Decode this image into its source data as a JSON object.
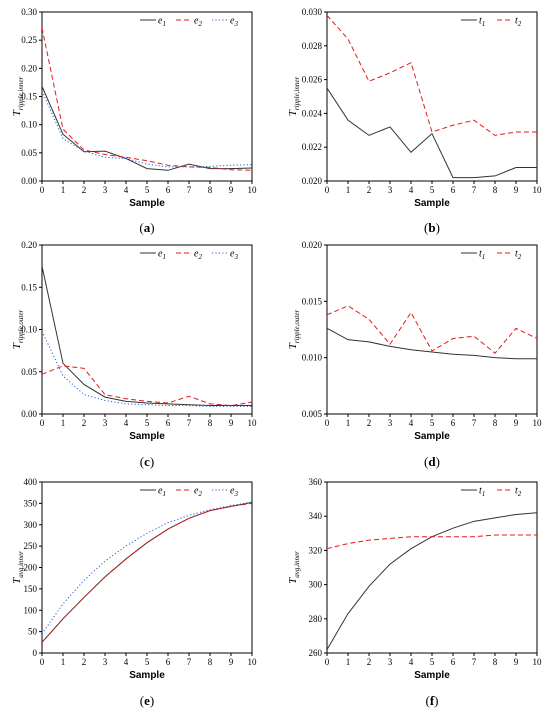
{
  "colors": {
    "e1": "#333333",
    "e2": "#e41a1c",
    "e3": "#1f5fd6",
    "t1": "#333333",
    "t2": "#e41a1c"
  },
  "chart_data": [
    {
      "id": "a",
      "caption": "a",
      "type": "line",
      "xlabel": "Sample",
      "ylabel": {
        "main": "T",
        "sub": "ripple,inner"
      },
      "xlim": [
        0,
        10
      ],
      "ylim": [
        0,
        0.3
      ],
      "xticks": [
        0,
        1,
        2,
        3,
        4,
        5,
        6,
        7,
        8,
        9,
        10
      ],
      "yticks": [
        0.0,
        0.05,
        0.1,
        0.15,
        0.2,
        0.25,
        0.3
      ],
      "ytick_labels": [
        "0.00",
        "0.05",
        "0.10",
        "0.15",
        "0.20",
        "0.25",
        "0.30"
      ],
      "legend": "top-right",
      "x": [
        0,
        1,
        2,
        3,
        4,
        5,
        6,
        7,
        8,
        9,
        10
      ],
      "series": [
        {
          "name": "e",
          "sub": "1",
          "style": "solid",
          "color_key": "e1",
          "values": [
            0.168,
            0.083,
            0.052,
            0.053,
            0.04,
            0.022,
            0.019,
            0.03,
            0.022,
            0.022,
            0.023
          ]
        },
        {
          "name": "e",
          "sub": "2",
          "style": "dashed",
          "color_key": "e2",
          "values": [
            0.272,
            0.092,
            0.055,
            0.047,
            0.042,
            0.036,
            0.028,
            0.025,
            0.024,
            0.02,
            0.019
          ]
        },
        {
          "name": "e",
          "sub": "3",
          "style": "dotted",
          "color_key": "e3",
          "values": [
            0.16,
            0.075,
            0.053,
            0.042,
            0.04,
            0.03,
            0.025,
            0.025,
            0.026,
            0.028,
            0.029
          ]
        }
      ]
    },
    {
      "id": "b",
      "caption": "b",
      "type": "line",
      "xlabel": "Sample",
      "ylabel": {
        "main": "T",
        "sub": "ripple,inner"
      },
      "xlim": [
        0,
        10
      ],
      "ylim": [
        0.02,
        0.03
      ],
      "xticks": [
        0,
        1,
        2,
        3,
        4,
        5,
        6,
        7,
        8,
        9,
        10
      ],
      "yticks": [
        0.02,
        0.022,
        0.024,
        0.026,
        0.028,
        0.03
      ],
      "ytick_labels": [
        "0.020",
        "0.022",
        "0.024",
        "0.026",
        "0.028",
        "0.030"
      ],
      "legend": "top-right",
      "x": [
        0,
        1,
        2,
        3,
        4,
        5,
        6,
        7,
        8,
        9,
        10
      ],
      "series": [
        {
          "name": "t",
          "sub": "1",
          "style": "solid",
          "color_key": "t1",
          "values": [
            0.0255,
            0.0236,
            0.0227,
            0.0232,
            0.0217,
            0.0228,
            0.0202,
            0.0202,
            0.0203,
            0.0208,
            0.0208
          ]
        },
        {
          "name": "t",
          "sub": "2",
          "style": "dashed",
          "color_key": "t2",
          "values": [
            0.0298,
            0.0284,
            0.0259,
            0.0264,
            0.027,
            0.0229,
            0.0233,
            0.0236,
            0.0227,
            0.0229,
            0.0229
          ]
        }
      ]
    },
    {
      "id": "c",
      "caption": "c",
      "type": "line",
      "xlabel": "Sample",
      "ylabel": {
        "main": "T",
        "sub": "ripple,outer"
      },
      "xlim": [
        0,
        10
      ],
      "ylim": [
        0,
        0.2
      ],
      "xticks": [
        0,
        1,
        2,
        3,
        4,
        5,
        6,
        7,
        8,
        9,
        10
      ],
      "yticks": [
        0.0,
        0.05,
        0.1,
        0.15,
        0.2
      ],
      "ytick_labels": [
        "0.00",
        "0.05",
        "0.10",
        "0.15",
        "0.20"
      ],
      "legend": "top-right",
      "x": [
        0,
        1,
        2,
        3,
        4,
        5,
        6,
        7,
        8,
        9,
        10
      ],
      "series": [
        {
          "name": "e",
          "sub": "1",
          "style": "solid",
          "color_key": "e1",
          "values": [
            0.175,
            0.06,
            0.035,
            0.02,
            0.015,
            0.013,
            0.012,
            0.011,
            0.01,
            0.01,
            0.01
          ]
        },
        {
          "name": "e",
          "sub": "2",
          "style": "dashed",
          "color_key": "e2",
          "values": [
            0.047,
            0.057,
            0.054,
            0.023,
            0.018,
            0.015,
            0.013,
            0.021,
            0.012,
            0.01,
            0.014
          ]
        },
        {
          "name": "e",
          "sub": "3",
          "style": "dotted",
          "color_key": "e3",
          "values": [
            0.098,
            0.045,
            0.023,
            0.016,
            0.012,
            0.011,
            0.01,
            0.01,
            0.009,
            0.009,
            0.009
          ]
        }
      ]
    },
    {
      "id": "d",
      "caption": "d",
      "type": "line",
      "xlabel": "Sample",
      "ylabel": {
        "main": "T",
        "sub": "ripple,outer"
      },
      "xlim": [
        0,
        10
      ],
      "ylim": [
        0.005,
        0.02
      ],
      "xticks": [
        0,
        1,
        2,
        3,
        4,
        5,
        6,
        7,
        8,
        9,
        10
      ],
      "yticks": [
        0.005,
        0.01,
        0.015,
        0.02
      ],
      "ytick_labels": [
        "0.005",
        "0.010",
        "0.015",
        "0.020"
      ],
      "legend": "top-right",
      "x": [
        0,
        1,
        2,
        3,
        4,
        5,
        6,
        7,
        8,
        9,
        10
      ],
      "series": [
        {
          "name": "t",
          "sub": "1",
          "style": "solid",
          "color_key": "t1",
          "values": [
            0.0126,
            0.0116,
            0.0114,
            0.011,
            0.0107,
            0.0105,
            0.0103,
            0.0102,
            0.01,
            0.0099,
            0.0099
          ]
        },
        {
          "name": "t",
          "sub": "2",
          "style": "dashed",
          "color_key": "t2",
          "values": [
            0.0138,
            0.0146,
            0.0134,
            0.0112,
            0.014,
            0.0106,
            0.0117,
            0.0119,
            0.0104,
            0.0126,
            0.0117
          ]
        }
      ]
    },
    {
      "id": "e",
      "caption": "e",
      "type": "line",
      "xlabel": "Sample",
      "ylabel": {
        "main": "T",
        "sub": "avg,inner"
      },
      "xlim": [
        0,
        10
      ],
      "ylim": [
        0,
        400
      ],
      "xticks": [
        0,
        1,
        2,
        3,
        4,
        5,
        6,
        7,
        8,
        9,
        10
      ],
      "yticks": [
        0,
        50,
        100,
        150,
        200,
        250,
        300,
        350,
        400
      ],
      "ytick_labels": [
        "0",
        "50",
        "100",
        "150",
        "200",
        "250",
        "300",
        "350",
        "400"
      ],
      "legend": "top-right",
      "x": [
        0,
        1,
        2,
        3,
        4,
        5,
        6,
        7,
        8,
        9,
        10
      ],
      "series": [
        {
          "name": "e",
          "sub": "1",
          "style": "solid",
          "color_key": "e1",
          "values": [
            25,
            80,
            130,
            178,
            220,
            258,
            290,
            315,
            333,
            343,
            352
          ]
        },
        {
          "name": "e",
          "sub": "2",
          "style": "dashed",
          "color_key": "e2",
          "values": [
            25,
            80,
            130,
            178,
            220,
            258,
            290,
            315,
            333,
            343,
            350
          ]
        },
        {
          "name": "e",
          "sub": "3",
          "style": "dotted",
          "color_key": "e3",
          "values": [
            45,
            115,
            170,
            215,
            250,
            280,
            305,
            322,
            335,
            345,
            353
          ]
        }
      ]
    },
    {
      "id": "f",
      "caption": "f",
      "type": "line",
      "xlabel": "Sample",
      "ylabel": {
        "main": "T",
        "sub": "avg,inner"
      },
      "xlim": [
        0,
        10
      ],
      "ylim": [
        260,
        360
      ],
      "xticks": [
        0,
        1,
        2,
        3,
        4,
        5,
        6,
        7,
        8,
        9,
        10
      ],
      "yticks": [
        260,
        280,
        300,
        320,
        340,
        360
      ],
      "ytick_labels": [
        "260",
        "280",
        "300",
        "320",
        "340",
        "360"
      ],
      "legend": "top-right",
      "x": [
        0,
        1,
        2,
        3,
        4,
        5,
        6,
        7,
        8,
        9,
        10
      ],
      "series": [
        {
          "name": "t",
          "sub": "1",
          "style": "solid",
          "color_key": "t1",
          "values": [
            262,
            283,
            299,
            312,
            321,
            328,
            333,
            337,
            339,
            341,
            342
          ]
        },
        {
          "name": "t",
          "sub": "2",
          "style": "dashed",
          "color_key": "t2",
          "values": [
            321,
            324,
            326,
            327,
            328,
            328,
            328,
            328,
            329,
            329,
            329
          ]
        }
      ]
    }
  ]
}
